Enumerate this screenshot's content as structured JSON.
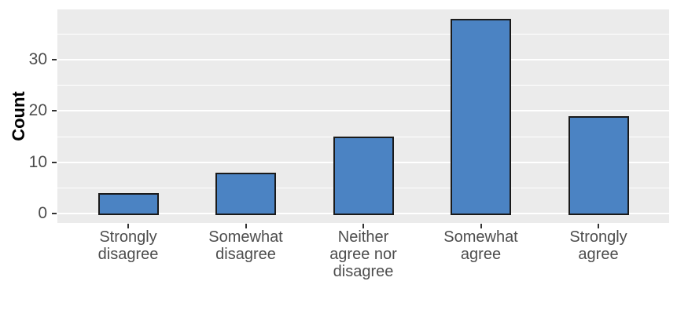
{
  "chart_data": {
    "type": "bar",
    "title": "",
    "xlabel": "",
    "ylabel": "Count",
    "categories": [
      "Strongly\ndisagree",
      "Somewhat\ndisagree",
      "Neither\nagree nor\ndisagree",
      "Somewhat\nagree",
      "Strongly\nagree"
    ],
    "values": [
      4,
      8,
      15,
      38,
      19
    ],
    "y_ticks": [
      0,
      10,
      20,
      30
    ],
    "y_minor_ticks": [
      5,
      15,
      25,
      35
    ],
    "ylim": [
      -1.9,
      39.9
    ],
    "grid": true,
    "legend": "none",
    "colors": {
      "bar_fill": "#4B83C3",
      "bar_border": "#1A1A1A",
      "panel_bg": "#EBEBEB",
      "grid_major": "#FFFFFF",
      "grid_minor": "#FFFFFF",
      "tick_mark": "#333333",
      "tick_label": "#4D4D4D",
      "axis_title": "#000000"
    }
  }
}
